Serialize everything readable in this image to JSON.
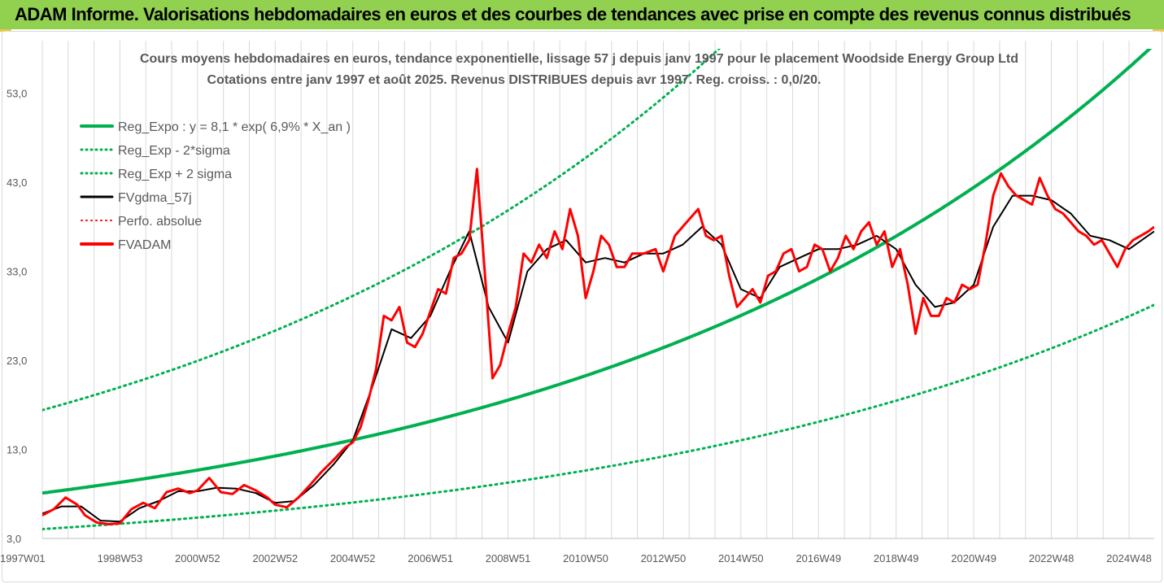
{
  "header": {
    "title": "ADAM Informe. Valorisations hebdomadaires en euros et des courbes de tendances avec prise en compte des revenus connus distribués"
  },
  "colors": {
    "header_bg": "#92d050",
    "regression_green": "#00b050",
    "price_red": "#ff0000",
    "smoothed_black": "#000000",
    "grid": "#d9d9d9",
    "axis_text": "#595959"
  },
  "chart_data": {
    "type": "line",
    "title": "Cours moyens hebdomadaires en euros, tendance exponentielle, lissage 57 j depuis janv 1997  pour le placement Woodside Energy Group Ltd",
    "subtitle": "Cotations entre janv 1997 et août 2025. Revenus DISTRIBUES depuis avr 1997. Reg.  croiss. : 0,0/20.",
    "ylim": [
      3,
      58
    ],
    "y_ticks": [
      "3,0",
      "13,0",
      "23,0",
      "33,0",
      "43,0",
      "53,0"
    ],
    "x_ticks": [
      "1997W01",
      "1998W53",
      "2000W52",
      "2002W52",
      "2004W52",
      "2006W51",
      "2008W51",
      "2010W50",
      "2012W50",
      "2014W50",
      "2016W49",
      "2018W49",
      "2020W49",
      "2022W48",
      "2024W48"
    ],
    "x_tick_years": [
      1997.0,
      1999.0,
      2001.0,
      2003.0,
      2005.0,
      2007.0,
      2009.0,
      2011.0,
      2013.0,
      2015.0,
      2017.0,
      2019.0,
      2021.0,
      2023.0,
      2025.0
    ],
    "xlim": [
      1997.0,
      2025.65
    ],
    "grid": "vertical",
    "legend_position": "top-left",
    "legend": [
      {
        "label": "Reg_Expo : y = 8,1 * exp( 6,9% *  X_an )",
        "color": "#00b050",
        "style": "solid",
        "width": 4
      },
      {
        "label": "Reg_Exp - 2*sigma",
        "color": "#00b050",
        "style": "dotted",
        "width": 3
      },
      {
        "label": "Reg_Exp + 2 sigma",
        "color": "#00b050",
        "style": "dotted",
        "width": 3
      },
      {
        "label": "FVgdma_57j",
        "color": "#000000",
        "style": "solid",
        "width": 3
      },
      {
        "label": "Perfo. absolue",
        "color": "#ff0000",
        "style": "dotted",
        "width": 2
      },
      {
        "label": "FVADAM",
        "color": "#ff0000",
        "style": "solid",
        "width": 4
      }
    ],
    "regression": {
      "a": 8.1,
      "rate": 0.069,
      "lower_factor": 0.5,
      "upper_factor": 2.15
    },
    "series": [
      {
        "name": "FVADAM",
        "x": [
          1997.0,
          1997.3,
          1997.6,
          1997.9,
          1998.1,
          1998.4,
          1998.7,
          1999.0,
          1999.3,
          1999.6,
          1999.9,
          2000.2,
          2000.5,
          2000.8,
          2001.0,
          2001.3,
          2001.6,
          2001.9,
          2002.2,
          2002.5,
          2002.8,
          2003.0,
          2003.3,
          2003.6,
          2003.9,
          2004.2,
          2004.5,
          2004.8,
          2005.0,
          2005.2,
          2005.4,
          2005.6,
          2005.8,
          2006.0,
          2006.2,
          2006.4,
          2006.6,
          2006.8,
          2007.0,
          2007.2,
          2007.4,
          2007.6,
          2007.8,
          2008.0,
          2008.2,
          2008.4,
          2008.6,
          2008.8,
          2009.0,
          2009.2,
          2009.4,
          2009.6,
          2009.8,
          2010.0,
          2010.2,
          2010.4,
          2010.6,
          2010.8,
          2011.0,
          2011.2,
          2011.4,
          2011.6,
          2011.8,
          2012.0,
          2012.2,
          2012.5,
          2012.8,
          2013.0,
          2013.3,
          2013.6,
          2013.9,
          2014.1,
          2014.3,
          2014.5,
          2014.7,
          2014.9,
          2015.1,
          2015.3,
          2015.5,
          2015.7,
          2015.9,
          2016.1,
          2016.3,
          2016.5,
          2016.7,
          2016.9,
          2017.1,
          2017.3,
          2017.5,
          2017.7,
          2017.9,
          2018.1,
          2018.3,
          2018.5,
          2018.7,
          2018.9,
          2019.1,
          2019.3,
          2019.5,
          2019.7,
          2019.9,
          2020.1,
          2020.3,
          2020.5,
          2020.7,
          2020.9,
          2021.1,
          2021.3,
          2021.5,
          2021.7,
          2021.9,
          2022.1,
          2022.3,
          2022.5,
          2022.7,
          2022.9,
          2023.1,
          2023.3,
          2023.5,
          2023.7,
          2023.9,
          2024.1,
          2024.3,
          2024.5,
          2024.7,
          2024.9,
          2025.1,
          2025.3,
          2025.5,
          2025.65
        ],
        "values": [
          5.6,
          6.3,
          7.6,
          6.8,
          5.6,
          4.8,
          4.6,
          4.7,
          6.3,
          7.0,
          6.4,
          8.2,
          8.6,
          8.1,
          8.4,
          9.8,
          8.2,
          8.0,
          9.0,
          8.4,
          7.6,
          6.8,
          6.5,
          7.6,
          9.0,
          10.5,
          11.8,
          13.2,
          13.8,
          15.5,
          18.5,
          22.0,
          28.0,
          27.5,
          29.0,
          25.0,
          24.5,
          26.0,
          28.5,
          31.0,
          30.5,
          34.5,
          35.0,
          36.5,
          44.5,
          33.0,
          21.0,
          22.5,
          26.0,
          29.0,
          35.0,
          34.0,
          36.0,
          34.5,
          37.5,
          35.5,
          40.0,
          37.0,
          30.0,
          33.0,
          37.0,
          36.0,
          33.5,
          33.5,
          35.0,
          35.0,
          35.5,
          33.0,
          37.0,
          38.5,
          40.0,
          37.0,
          36.5,
          37.0,
          32.5,
          29.0,
          30.0,
          31.0,
          29.5,
          32.5,
          33.0,
          35.0,
          35.5,
          33.0,
          33.5,
          36.0,
          35.5,
          33.0,
          34.5,
          37.0,
          35.5,
          37.5,
          38.5,
          36.0,
          37.5,
          33.5,
          35.5,
          31.5,
          26.0,
          30.0,
          28.0,
          28.0,
          30.0,
          29.5,
          31.5,
          31.0,
          31.5,
          36.0,
          41.5,
          44.0,
          42.5,
          41.5,
          41.0,
          40.5,
          43.5,
          41.5,
          40.0,
          39.5,
          38.5,
          37.5,
          37.0,
          36.0,
          36.5,
          35.0,
          33.5,
          35.5,
          36.5,
          37.0,
          37.5,
          38.0
        ],
        "color": "#ff0000"
      },
      {
        "name": "FVgdma_57j",
        "x": [
          1997.0,
          1997.5,
          1998.0,
          1998.5,
          1999.0,
          1999.5,
          2000.0,
          2000.5,
          2001.0,
          2001.5,
          2002.0,
          2002.5,
          2003.0,
          2003.5,
          2004.0,
          2004.5,
          2005.0,
          2005.5,
          2006.0,
          2006.5,
          2007.0,
          2007.5,
          2008.0,
          2008.5,
          2009.0,
          2009.5,
          2010.0,
          2010.5,
          2011.0,
          2011.5,
          2012.0,
          2012.5,
          2013.0,
          2013.5,
          2014.0,
          2014.5,
          2015.0,
          2015.5,
          2016.0,
          2016.5,
          2017.0,
          2017.5,
          2018.0,
          2018.5,
          2019.0,
          2019.5,
          2020.0,
          2020.5,
          2021.0,
          2021.5,
          2022.0,
          2022.5,
          2023.0,
          2023.5,
          2024.0,
          2024.5,
          2025.0,
          2025.65
        ],
        "values": [
          5.8,
          6.6,
          6.6,
          5.0,
          4.9,
          6.4,
          7.2,
          8.3,
          8.3,
          8.7,
          8.6,
          8.1,
          7.0,
          7.2,
          9.0,
          11.3,
          14.0,
          20.0,
          26.5,
          25.5,
          28.0,
          33.0,
          37.5,
          29.0,
          25.0,
          33.0,
          35.5,
          36.5,
          34.0,
          34.5,
          34.0,
          35.0,
          35.0,
          36.0,
          38.0,
          36.0,
          31.0,
          30.0,
          33.5,
          34.5,
          35.5,
          35.5,
          36.0,
          37.0,
          35.5,
          31.5,
          29.0,
          29.5,
          31.5,
          38.0,
          41.5,
          41.5,
          41.0,
          39.5,
          37.0,
          36.5,
          35.5,
          37.5
        ],
        "color": "#000000"
      }
    ]
  }
}
